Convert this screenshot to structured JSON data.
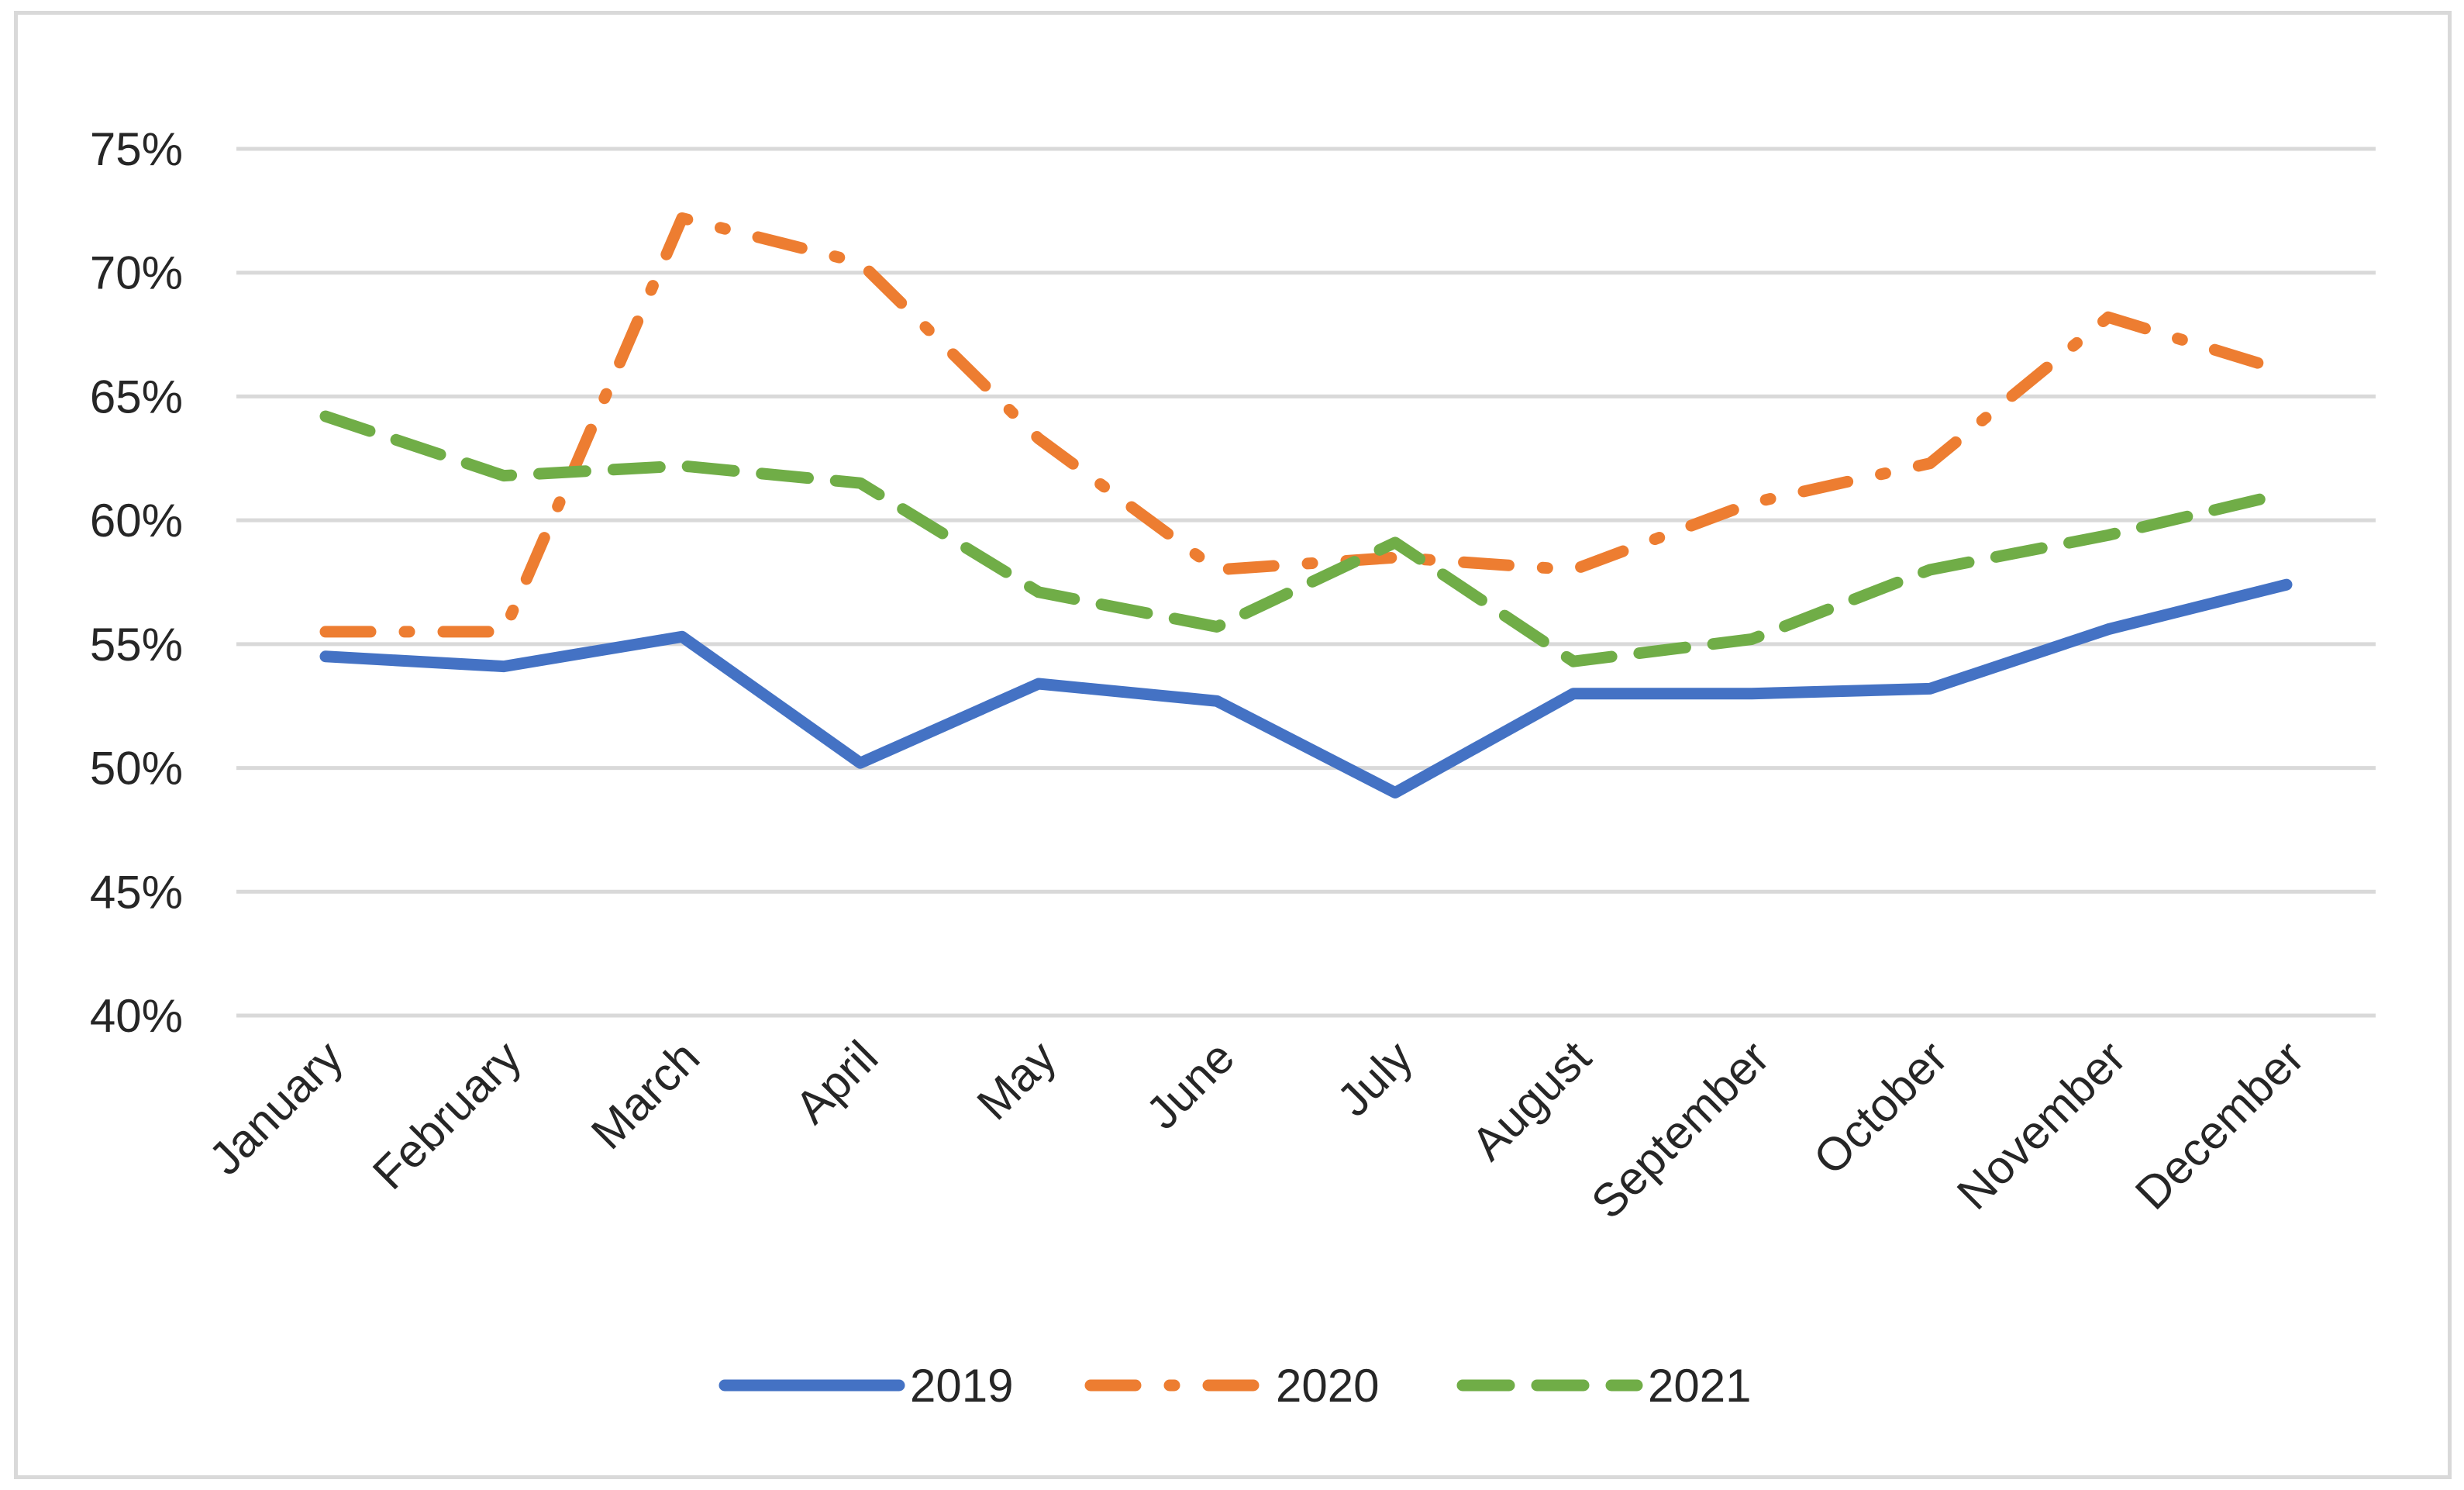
{
  "chart_data": {
    "type": "line",
    "title": "",
    "xlabel": "",
    "ylabel": "",
    "categories": [
      "January",
      "February",
      "March",
      "April",
      "May",
      "June",
      "July",
      "August",
      "September",
      "October",
      "November",
      "December"
    ],
    "ylim": [
      0.4,
      0.75
    ],
    "yticks": [
      0.4,
      0.45,
      0.5,
      0.55,
      0.6,
      0.65,
      0.7,
      0.75
    ],
    "ytick_labels": [
      "40%",
      "45%",
      "50%",
      "55%",
      "60%",
      "65%",
      "70%",
      "75%"
    ],
    "grid": true,
    "legend_position": "bottom",
    "series": [
      {
        "name": "2019",
        "values": [
          0.545,
          0.541,
          0.553,
          0.502,
          0.534,
          0.527,
          0.49,
          0.53,
          0.53,
          0.532,
          0.556,
          0.574
        ],
        "color": "#4472c4",
        "style": "solid"
      },
      {
        "name": "2020",
        "values": [
          0.555,
          0.555,
          0.722,
          0.704,
          0.633,
          0.58,
          0.585,
          0.58,
          0.607,
          0.623,
          0.682,
          0.66
        ],
        "color": "#ed7d31",
        "style": "dash-dot"
      },
      {
        "name": "2021",
        "values": [
          0.642,
          0.618,
          0.622,
          0.615,
          0.571,
          0.557,
          0.591,
          0.543,
          0.552,
          0.58,
          0.594,
          0.611
        ],
        "color": "#70ad47",
        "style": "dash"
      }
    ]
  }
}
